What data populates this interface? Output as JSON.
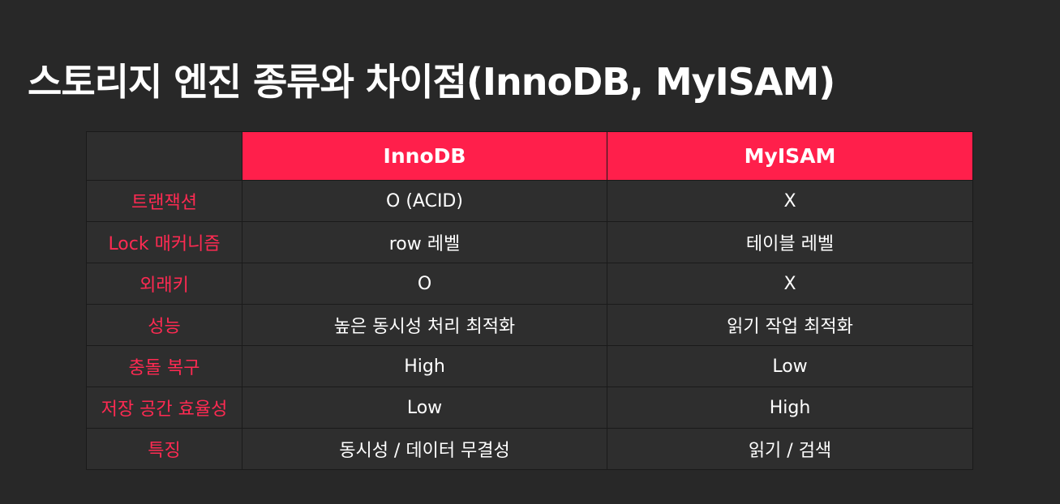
{
  "slide": {
    "title": "스토리지 엔진 종류와 차이점(InnoDB, MyISAM)"
  },
  "table": {
    "corner": "",
    "columns": [
      "InnoDB",
      "MyISAM"
    ],
    "rows": [
      {
        "feature": "트랜잭션",
        "innodb": "O (ACID)",
        "myisam": "X"
      },
      {
        "feature": "Lock 매커니즘",
        "innodb": "row 레벨",
        "myisam": "테이블 레벨"
      },
      {
        "feature": "외래키",
        "innodb": "O",
        "myisam": "X"
      },
      {
        "feature": "성능",
        "innodb": "높은 동시성 처리 최적화",
        "myisam": "읽기 작업 최적화"
      },
      {
        "feature": "충돌 복구",
        "innodb": "High",
        "myisam": "Low"
      },
      {
        "feature": "저장 공간 효율성",
        "innodb": "Low",
        "myisam": "High"
      },
      {
        "feature": "특징",
        "innodb": "동시성 / 데이터 무결성",
        "myisam": "읽기 / 검색"
      }
    ]
  },
  "colors": {
    "background": "#282828",
    "header_accent": "#ff1f4b",
    "feature_text": "#ff2a52",
    "cell_background": "#2e2e2e"
  }
}
